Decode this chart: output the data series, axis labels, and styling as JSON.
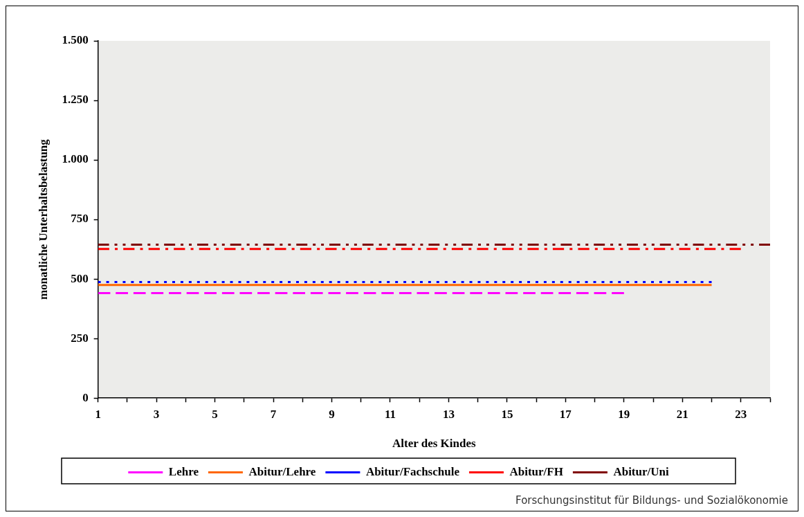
{
  "chart_data": {
    "type": "line",
    "xlabel": "Alter des Kindes",
    "ylabel": "monatliche Unterhaltsbelastung",
    "xlim": [
      1,
      24
    ],
    "xticks": [
      1,
      {
        "value": 2,
        "label": null
      },
      3,
      {
        "value": 4,
        "label": null
      },
      5,
      {
        "value": 6,
        "label": null
      },
      7,
      {
        "value": 8,
        "label": null
      },
      9,
      {
        "value": 10,
        "label": null
      },
      11,
      {
        "value": 12,
        "label": null
      },
      13,
      {
        "value": 14,
        "label": null
      },
      15,
      {
        "value": 16,
        "label": null
      },
      17,
      {
        "value": 18,
        "label": null
      },
      19,
      {
        "value": 20,
        "label": null
      },
      21,
      {
        "value": 22,
        "label": null
      },
      23,
      {
        "value": 24,
        "label": null
      }
    ],
    "ylim": [
      0,
      1500
    ],
    "yticks": [
      0,
      250,
      500,
      750,
      {
        "value": 1000,
        "label": "1.000"
      },
      {
        "value": 1250,
        "label": "1.250"
      },
      {
        "value": 1500,
        "label": "1.500"
      }
    ],
    "grid": false,
    "legend": "bottom",
    "marker": "none",
    "series": [
      {
        "name": "Lehre",
        "color": "#ff00ff",
        "line_style": "dashed",
        "x": [
          1,
          2,
          3,
          4,
          5,
          6,
          7,
          8,
          9,
          10,
          11,
          12,
          13,
          14,
          15,
          16,
          17,
          18,
          19
        ],
        "values": [
          441,
          441,
          441,
          441,
          441,
          441,
          441,
          441,
          441,
          441,
          441,
          441,
          441,
          441,
          441,
          441,
          441,
          441,
          441
        ]
      },
      {
        "name": "Abitur/Lehre",
        "color": "#ff6600",
        "line_style": "solid",
        "x": [
          1,
          2,
          3,
          4,
          5,
          6,
          7,
          8,
          9,
          10,
          11,
          12,
          13,
          14,
          15,
          16,
          17,
          18,
          19,
          20,
          21,
          22
        ],
        "values": [
          475,
          475,
          475,
          475,
          475,
          475,
          475,
          475,
          475,
          475,
          475,
          475,
          475,
          475,
          475,
          475,
          475,
          475,
          475,
          475,
          475,
          475
        ]
      },
      {
        "name": "Abitur/Fachschule",
        "color": "#0000ff",
        "line_style": "dotted",
        "x": [
          1,
          2,
          3,
          4,
          5,
          6,
          7,
          8,
          9,
          10,
          11,
          12,
          13,
          14,
          15,
          16,
          17,
          18,
          19,
          20,
          21,
          22
        ],
        "values": [
          487,
          487,
          487,
          487,
          487,
          487,
          487,
          487,
          487,
          487,
          487,
          487,
          487,
          487,
          487,
          487,
          487,
          487,
          487,
          487,
          487,
          487
        ]
      },
      {
        "name": "Abitur/FH",
        "color": "#ff0000",
        "line_style": "dashdot",
        "x": [
          1,
          2,
          3,
          4,
          5,
          6,
          7,
          8,
          9,
          10,
          11,
          12,
          13,
          14,
          15,
          16,
          17,
          18,
          19,
          20,
          21,
          22,
          23
        ],
        "values": [
          626,
          626,
          626,
          626,
          626,
          626,
          626,
          626,
          626,
          626,
          626,
          626,
          626,
          626,
          626,
          626,
          626,
          626,
          626,
          626,
          626,
          626,
          626
        ]
      },
      {
        "name": "Abitur/Uni",
        "color": "#800000",
        "line_style": "dashdotdot",
        "x": [
          1,
          2,
          3,
          4,
          5,
          6,
          7,
          8,
          9,
          10,
          11,
          12,
          13,
          14,
          15,
          16,
          17,
          18,
          19,
          20,
          21,
          22,
          23,
          24
        ],
        "values": [
          644,
          644,
          644,
          644,
          644,
          644,
          644,
          644,
          644,
          644,
          644,
          644,
          644,
          644,
          644,
          644,
          644,
          644,
          644,
          644,
          644,
          644,
          644,
          644
        ]
      }
    ],
    "annotations": [
      "Forschungsinstitut für Bildungs- und Sozialökonomie"
    ]
  }
}
